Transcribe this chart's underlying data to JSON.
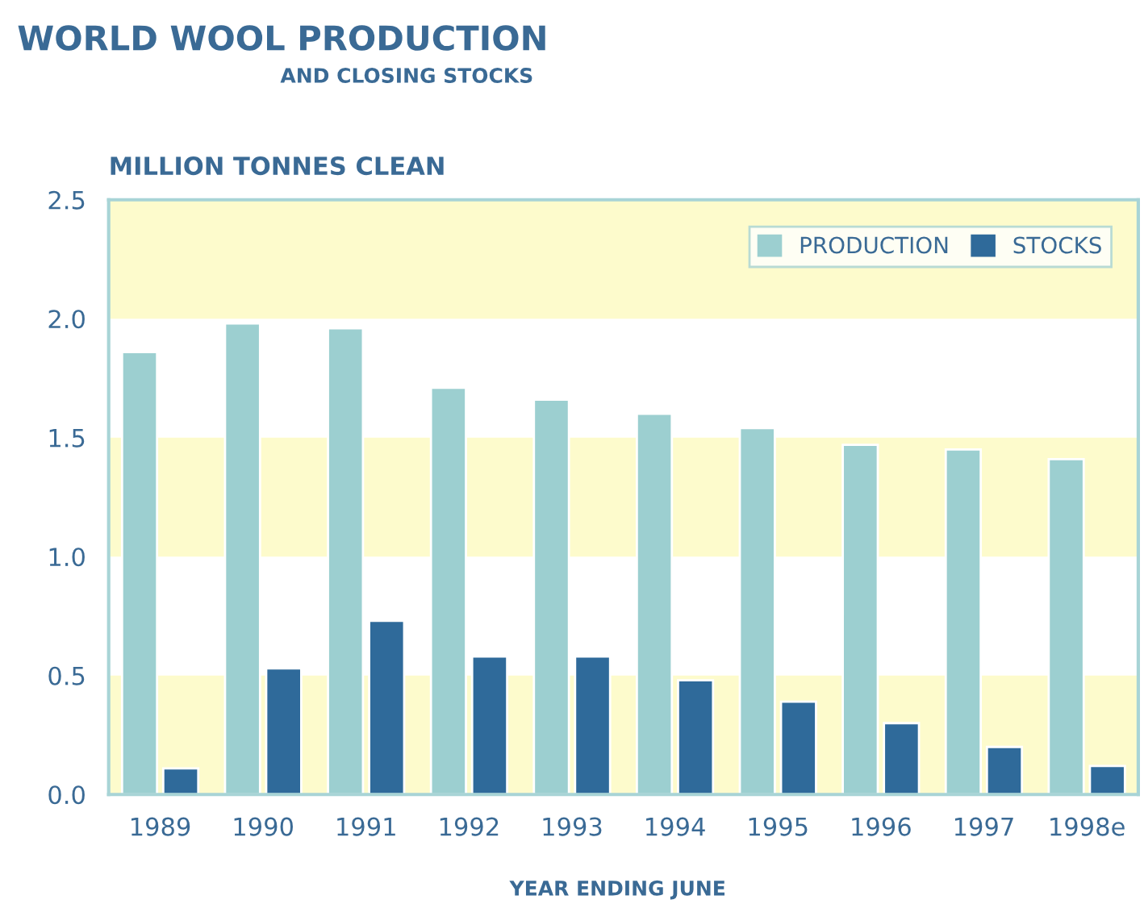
{
  "chart_data": {
    "type": "bar",
    "title": "WORLD WOOL PRODUCTION",
    "subtitle": "AND CLOSING STOCKS",
    "ylabel": "MILLION TONNES CLEAN",
    "xlabel": "YEAR ENDING JUNE",
    "categories": [
      "1989",
      "1990",
      "1991",
      "1992",
      "1993",
      "1994",
      "1995",
      "1996",
      "1997",
      "1998e"
    ],
    "series": [
      {
        "name": "PRODUCTION",
        "color": "#9ccfd0",
        "values": [
          1.86,
          1.98,
          1.96,
          1.71,
          1.66,
          1.6,
          1.54,
          1.47,
          1.45,
          1.41
        ]
      },
      {
        "name": "STOCKS",
        "color": "#2f6a9a",
        "values": [
          0.11,
          0.53,
          0.73,
          0.58,
          0.58,
          0.48,
          0.39,
          0.3,
          0.2,
          0.12
        ]
      }
    ],
    "ylim": [
      0,
      2.5
    ],
    "yticks": [
      {
        "value": 0,
        "label": "0.0"
      },
      0.5,
      {
        "value": 1,
        "label": "1.0"
      },
      1.5,
      {
        "value": 2,
        "label": "2.0"
      },
      2.5
    ],
    "bands": [
      {
        "axis": "y",
        "from": 0,
        "to": 0.5,
        "color": "#fdfbcc"
      },
      {
        "axis": "y",
        "from": 1,
        "to": 1.5,
        "color": "#fdfbcc"
      },
      {
        "axis": "y",
        "from": 2,
        "to": 2.5,
        "color": "#fdfbcc"
      }
    ],
    "grid": false,
    "legend": "top right"
  }
}
